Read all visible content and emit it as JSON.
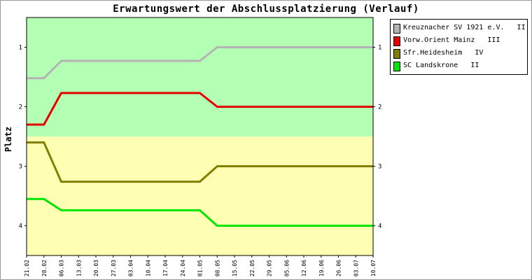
{
  "chart_data": {
    "type": "line",
    "title": "Erwartungswert der Abschlussplatzierung (Verlauf)",
    "ylabel": "Platz",
    "xlabel": "",
    "ylim": [
      4.5,
      0.5
    ],
    "y_ticks": [
      1,
      2,
      3,
      4
    ],
    "y_tick_labels": [
      "1",
      "2",
      "3",
      "4"
    ],
    "categories": [
      "21.02",
      "28.02",
      "06.03",
      "13.03",
      "20.03",
      "27.03",
      "03.04",
      "10.04",
      "17.04",
      "24.04",
      "01.05",
      "08.05",
      "15.05",
      "22.05",
      "29.05",
      "05.06",
      "12.06",
      "19.06",
      "26.06",
      "03.07",
      "10.07"
    ],
    "bands": [
      {
        "from": 0.5,
        "to": 2.5,
        "color": "#b3ffb3"
      },
      {
        "from": 2.5,
        "to": 4.5,
        "color": "#ffffb3"
      }
    ],
    "grid": false,
    "legend_position": "right",
    "series": [
      {
        "name": "Kreuznacher SV 1921 e.V.   II",
        "color": "#b3b3b3",
        "values": [
          1.52,
          1.52,
          1.23,
          1.23,
          1.23,
          1.23,
          1.23,
          1.23,
          1.23,
          1.23,
          1.23,
          1.0,
          1.0,
          1.0,
          1.0,
          1.0,
          1.0,
          1.0,
          1.0,
          1.0,
          1.0
        ]
      },
      {
        "name": "Vorw.Orient Mainz   III",
        "color": "#e60000",
        "values": [
          2.3,
          2.3,
          1.77,
          1.77,
          1.77,
          1.77,
          1.77,
          1.77,
          1.77,
          1.77,
          1.77,
          2.0,
          2.0,
          2.0,
          2.0,
          2.0,
          2.0,
          2.0,
          2.0,
          2.0,
          2.0
        ]
      },
      {
        "name": "Sfr.Heidesheim   IV",
        "color": "#808000",
        "values": [
          2.6,
          2.6,
          3.26,
          3.26,
          3.26,
          3.26,
          3.26,
          3.26,
          3.26,
          3.26,
          3.26,
          3.0,
          3.0,
          3.0,
          3.0,
          3.0,
          3.0,
          3.0,
          3.0,
          3.0,
          3.0
        ]
      },
      {
        "name": "SC Landskrone   II",
        "color": "#00e600",
        "values": [
          3.55,
          3.55,
          3.74,
          3.74,
          3.74,
          3.74,
          3.74,
          3.74,
          3.74,
          3.74,
          3.74,
          4.0,
          4.0,
          4.0,
          4.0,
          4.0,
          4.0,
          4.0,
          4.0,
          4.0,
          4.0
        ]
      }
    ]
  }
}
